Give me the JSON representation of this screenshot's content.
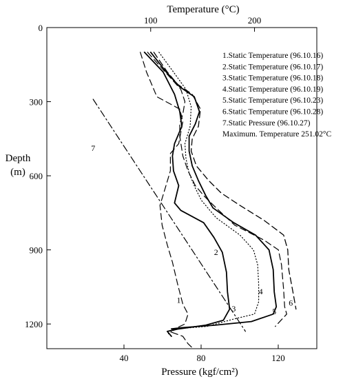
{
  "chart_data": {
    "type": "line",
    "top_axis": {
      "label": "Temperature (°C)",
      "ticks": [
        100,
        200
      ],
      "range": [
        0,
        260
      ]
    },
    "bottom_axis": {
      "label": "Pressure (kgf/cm²)",
      "ticks": [
        40,
        80,
        120
      ],
      "range": [
        0,
        140
      ]
    },
    "left_axis": {
      "label_line1": "Depth",
      "label_line2": "(m)",
      "ticks": [
        0,
        300,
        600,
        900,
        1200
      ],
      "range": [
        0,
        1300
      ],
      "inverted": true
    },
    "legend": {
      "position": "top-right",
      "entries": [
        "1.Static Temperature (96.10.16)",
        "2.Static Temperature (96.10.17)",
        "3.Static Temperature (96.10.18)",
        "4.Static Temperature (96.10.19)",
        "5.Static Temperature (96.10.23)",
        "6.Static Temperature (96.10.28)",
        "7.Static Pressure    (96.10.27)",
        "Maximum. Temperature 251.02°C"
      ]
    },
    "series": [
      {
        "label": "1",
        "axis": "temperature",
        "style": "dashed",
        "width": 1.2,
        "label_point": [
          127,
          1115
        ],
        "points": [
          [
            90,
            100
          ],
          [
            96,
            180
          ],
          [
            106,
            280
          ],
          [
            128,
            330
          ],
          [
            131,
            380
          ],
          [
            127,
            470
          ],
          [
            119,
            510
          ],
          [
            119,
            580
          ],
          [
            114,
            650
          ],
          [
            109,
            720
          ],
          [
            111,
            800
          ],
          [
            116,
            880
          ],
          [
            121,
            950
          ],
          [
            126,
            1040
          ],
          [
            131,
            1120
          ],
          [
            136,
            1160
          ],
          [
            133,
            1200
          ],
          [
            118,
            1230
          ],
          [
            131,
            1250
          ],
          [
            136,
            1280
          ],
          [
            141,
            1300
          ]
        ]
      },
      {
        "label": "2",
        "axis": "temperature",
        "style": "dashed",
        "width": 1.2,
        "label_point": [
          163,
          920
        ],
        "points": [
          [
            97,
            100
          ],
          [
            114,
            180
          ],
          [
            129,
            250
          ],
          [
            133,
            300
          ],
          [
            131,
            350
          ],
          [
            128,
            390
          ],
          [
            128,
            440
          ],
          [
            131,
            520
          ],
          [
            136,
            580
          ],
          [
            143,
            640
          ],
          [
            151,
            680
          ],
          [
            163,
            730
          ],
          [
            181,
            800
          ],
          [
            209,
            860
          ],
          [
            223,
            900
          ],
          [
            226,
            960
          ],
          [
            228,
            1060
          ],
          [
            229,
            1130
          ],
          [
            231,
            1160
          ],
          [
            220,
            1210
          ]
        ]
      },
      {
        "label": "3",
        "axis": "temperature",
        "style": "solid",
        "width": 1.8,
        "label_point": [
          180,
          1150
        ],
        "points": [
          [
            94,
            100
          ],
          [
            112,
            180
          ],
          [
            123,
            270
          ],
          [
            128,
            340
          ],
          [
            130,
            400
          ],
          [
            123,
            470
          ],
          [
            121,
            520
          ],
          [
            122,
            580
          ],
          [
            127,
            640
          ],
          [
            123,
            710
          ],
          [
            129,
            740
          ],
          [
            151,
            790
          ],
          [
            161,
            850
          ],
          [
            169,
            910
          ],
          [
            173,
            990
          ],
          [
            174,
            1070
          ],
          [
            176,
            1140
          ],
          [
            170,
            1185
          ],
          [
            153,
            1205
          ],
          [
            127,
            1220
          ],
          [
            116,
            1230
          ],
          [
            120,
            1250
          ]
        ]
      },
      {
        "label": "4",
        "axis": "temperature",
        "style": "dotted",
        "width": 1.2,
        "label_point": [
          206,
          1080
        ],
        "points": [
          [
            108,
            100
          ],
          [
            122,
            180
          ],
          [
            134,
            250
          ],
          [
            139,
            320
          ],
          [
            138,
            400
          ],
          [
            133,
            470
          ],
          [
            134,
            530
          ],
          [
            137,
            590
          ],
          [
            143,
            650
          ],
          [
            149,
            700
          ],
          [
            163,
            770
          ],
          [
            186,
            840
          ],
          [
            199,
            900
          ],
          [
            203,
            960
          ],
          [
            204,
            1040
          ],
          [
            204,
            1110
          ],
          [
            200,
            1160
          ],
          [
            180,
            1180
          ],
          [
            154,
            1210
          ],
          [
            124,
            1220
          ],
          [
            117,
            1240
          ]
        ]
      },
      {
        "label": "5",
        "axis": "temperature",
        "style": "solid",
        "width": 1.8,
        "label_point": [
          219,
          1160
        ],
        "points": [
          [
            100,
            100
          ],
          [
            115,
            180
          ],
          [
            128,
            240
          ],
          [
            142,
            280
          ],
          [
            147,
            340
          ],
          [
            143,
            390
          ],
          [
            137,
            440
          ],
          [
            137,
            500
          ],
          [
            140,
            560
          ],
          [
            146,
            620
          ],
          [
            153,
            680
          ],
          [
            160,
            730
          ],
          [
            180,
            790
          ],
          [
            201,
            840
          ],
          [
            214,
            900
          ],
          [
            218,
            980
          ],
          [
            219,
            1070
          ],
          [
            221,
            1130
          ],
          [
            218,
            1160
          ],
          [
            197,
            1190
          ],
          [
            162,
            1205
          ],
          [
            130,
            1215
          ],
          [
            120,
            1220
          ]
        ]
      },
      {
        "label": "6",
        "axis": "temperature",
        "style": "dashed",
        "width": 1.3,
        "label_point": [
          235,
          1125
        ],
        "points": [
          [
            103,
            100
          ],
          [
            116,
            180
          ],
          [
            126,
            230
          ],
          [
            140,
            270
          ],
          [
            148,
            330
          ],
          [
            146,
            400
          ],
          [
            140,
            450
          ],
          [
            139,
            500
          ],
          [
            144,
            560
          ],
          [
            156,
            620
          ],
          [
            168,
            670
          ],
          [
            186,
            720
          ],
          [
            209,
            780
          ],
          [
            228,
            840
          ],
          [
            232,
            900
          ],
          [
            233,
            980
          ],
          [
            237,
            1070
          ],
          [
            240,
            1140
          ]
        ]
      },
      {
        "label": "7",
        "axis": "pressure",
        "style": "dashdot",
        "width": 1.2,
        "label_point": [
          24,
          500
        ],
        "points": [
          [
            24,
            290
          ],
          [
            103,
            1230
          ]
        ]
      }
    ]
  }
}
